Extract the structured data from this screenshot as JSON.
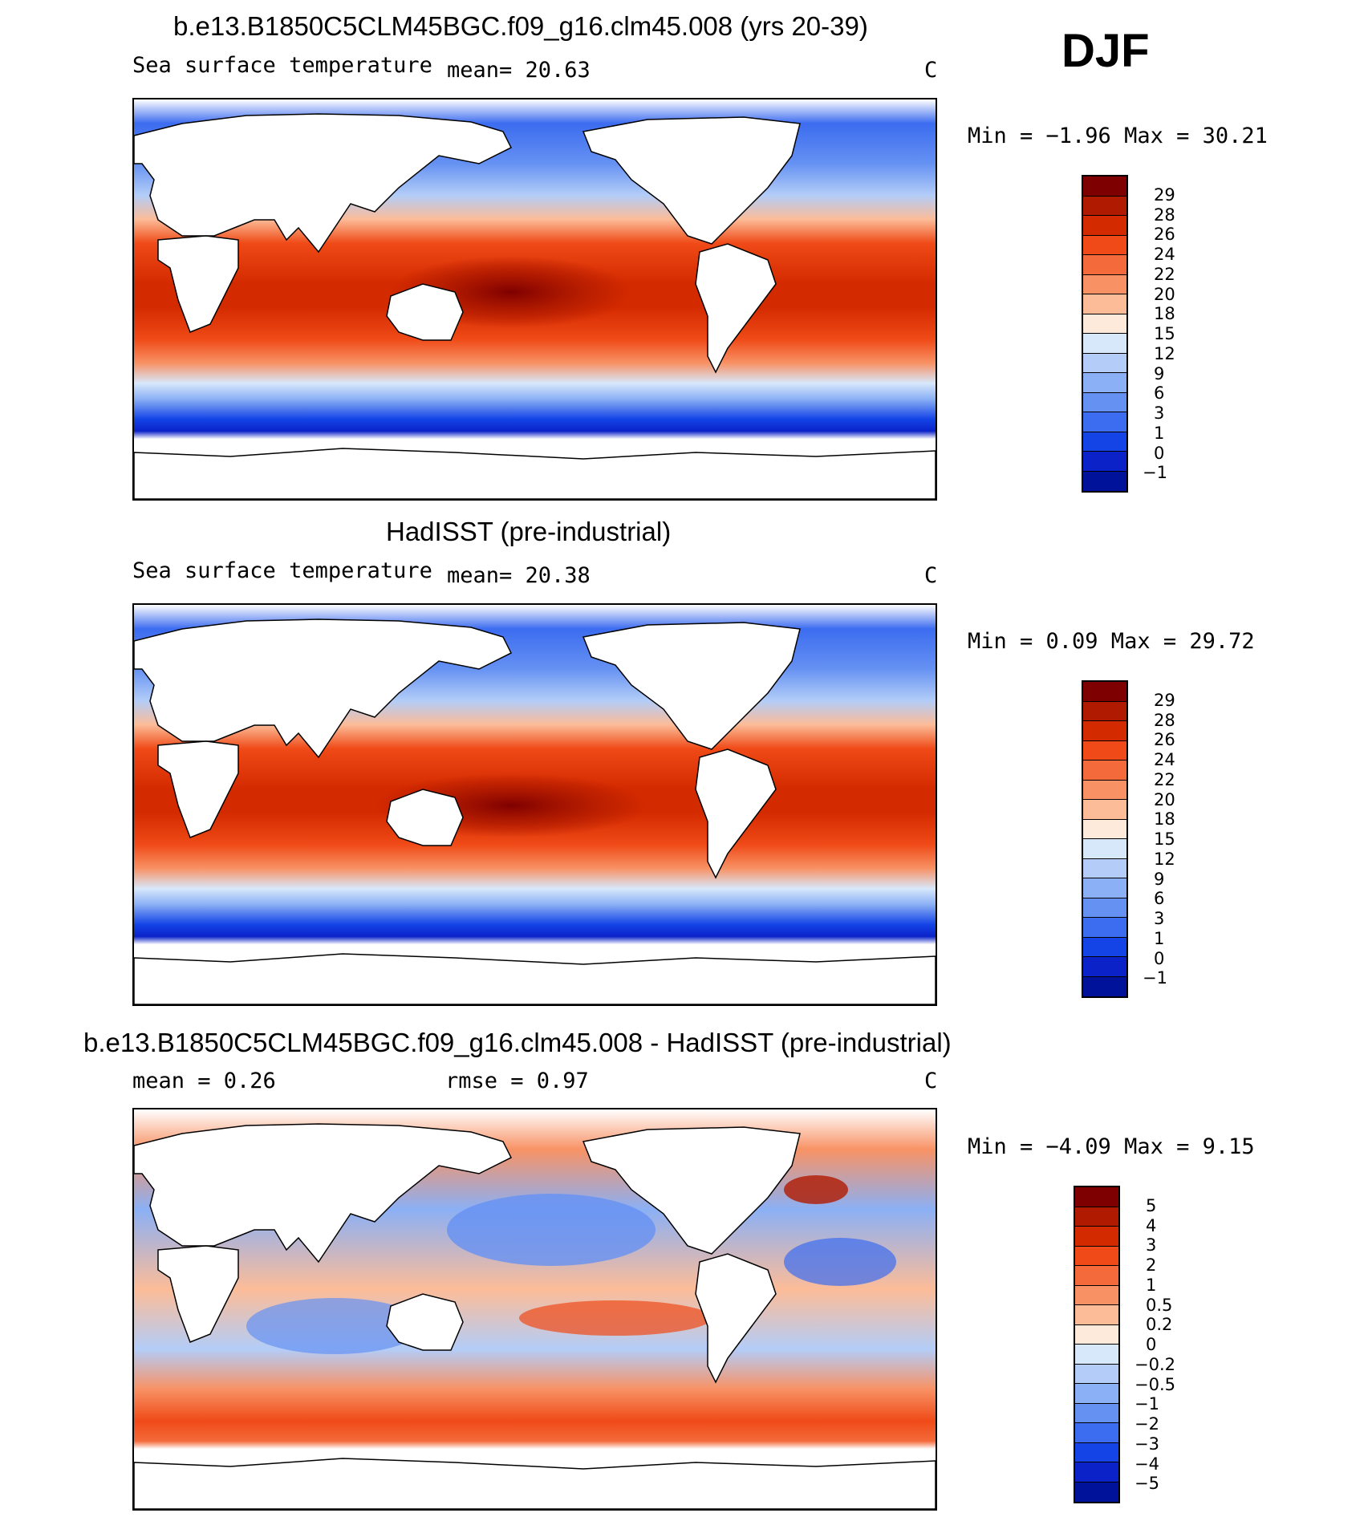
{
  "season": "DJF",
  "panels": [
    {
      "title": "b.e13.B1850C5CLM45BGC.f09_g16.clm45.008 (yrs 20-39)",
      "left_label": "Sea surface temperature",
      "stat1": "mean=  20.63",
      "units": "C",
      "minmax": "Min =  −1.96 Max =  30.21",
      "scale": "abs"
    },
    {
      "title": "HadISST (pre-industrial)",
      "left_label": "Sea surface temperature",
      "stat1": "mean=  20.38",
      "units": "C",
      "minmax": "Min =   0.09 Max =  29.72",
      "scale": "abs"
    },
    {
      "title": "b.e13.B1850C5CLM45BGC.f09_g16.clm45.008 - HadISST (pre-industrial)",
      "left_label": "mean =   0.26",
      "stat1": "rmse =   0.97",
      "units": "C",
      "minmax": "Min =  −4.09 Max =   9.15",
      "scale": "diff"
    }
  ],
  "colorbars": {
    "abs": {
      "labels": [
        "29",
        "28",
        "26",
        "24",
        "22",
        "20",
        "18",
        "15",
        "12",
        "9",
        "6",
        "3",
        "1",
        "0",
        "−1"
      ],
      "colors": [
        "#7f0000",
        "#b01a00",
        "#d42a00",
        "#ef4a17",
        "#f46a3a",
        "#f89265",
        "#fcbc98",
        "#feeadb",
        "#d8e8fb",
        "#b3cdf8",
        "#8bb0f5",
        "#6591f2",
        "#3c6cf0",
        "#1444e6",
        "#0a22c8",
        "#00119a"
      ]
    },
    "diff": {
      "labels": [
        "5",
        "4",
        "3",
        "2",
        "1",
        "0.5",
        "0.2",
        "0",
        "−0.2",
        "−0.5",
        "−1",
        "−2",
        "−3",
        "−4",
        "−5"
      ],
      "colors": [
        "#7f0000",
        "#b01a00",
        "#d42a00",
        "#ef4a17",
        "#f46a3a",
        "#f89265",
        "#fcbc98",
        "#feeadb",
        "#d8e8fb",
        "#b3cdf8",
        "#8bb0f5",
        "#6591f2",
        "#3c6cf0",
        "#1444e6",
        "#0a22c8",
        "#00119a"
      ]
    }
  }
}
